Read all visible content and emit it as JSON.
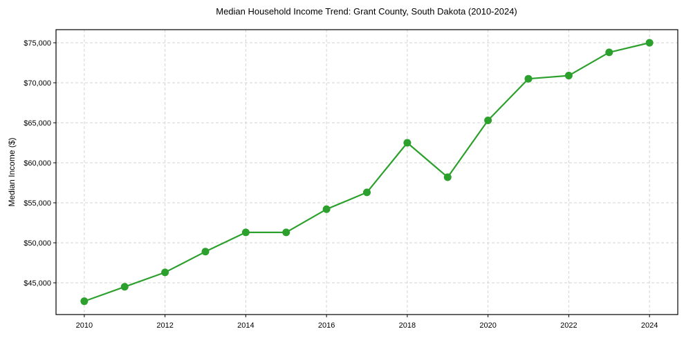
{
  "chart_data": {
    "type": "line",
    "title": "Median Household Income Trend: Grant County, South Dakota (2010-2024)",
    "xlabel": "",
    "ylabel": "Median Income ($)",
    "x": [
      2010,
      2011,
      2012,
      2013,
      2014,
      2015,
      2016,
      2017,
      2018,
      2019,
      2020,
      2021,
      2022,
      2023,
      2024
    ],
    "series": [
      {
        "name": "Median Household Income",
        "color": "#2ca02c",
        "marker": "circle",
        "values": [
          42700,
          44500,
          46300,
          48900,
          51300,
          51300,
          54200,
          56300,
          62500,
          58200,
          65300,
          70500,
          70900,
          73800,
          75000
        ]
      }
    ],
    "xticks": [
      2010,
      2012,
      2014,
      2016,
      2018,
      2020,
      2022,
      2024
    ],
    "yticks": [
      45000,
      50000,
      55000,
      60000,
      65000,
      70000,
      75000
    ],
    "ytick_labels": [
      "$45,000",
      "$50,000",
      "$55,000",
      "$60,000",
      "$65,000",
      "$70,000",
      "$75,000"
    ],
    "xlim": [
      2009.3,
      2024.7
    ],
    "ylim": [
      41034,
      76638
    ],
    "grid": true,
    "legend": null
  }
}
